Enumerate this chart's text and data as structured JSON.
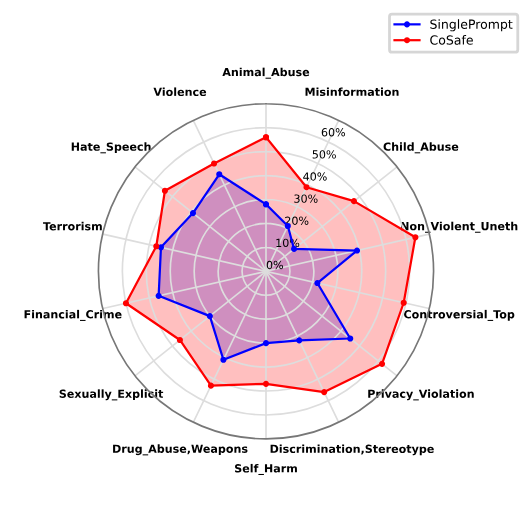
{
  "chart_data": {
    "type": "radar",
    "categories": [
      "Animal_Abuse",
      "Misinformation",
      "Child_Abuse",
      "Non_Violent_Uneth",
      "Controversial_Top",
      "Privacy_Violation",
      "Discrimination,Stereotype",
      "Self_Harm",
      "Drug_Abuse,Weapons",
      "Sexually_Explicit",
      "Financial_Crime",
      "Terrorism",
      "Hate_Speech",
      "Violence"
    ],
    "series": [
      {
        "name": "SinglePrompt",
        "color": "#0000ff",
        "values": [
          28,
          21,
          15,
          39,
          22,
          45,
          32,
          30,
          41,
          30,
          46,
          45,
          39,
          45
        ]
      },
      {
        "name": "CoSafe",
        "color": "#ff0000",
        "values": [
          56,
          39,
          47,
          64,
          59,
          62,
          56,
          47,
          53,
          46,
          60,
          47,
          54,
          50
        ]
      }
    ],
    "ylim": [
      0,
      70
    ],
    "yticks": [
      {
        "value": 0,
        "label": "0%"
      },
      {
        "value": 10,
        "label": "10%"
      },
      {
        "value": 20,
        "label": "20%"
      },
      {
        "value": 30,
        "label": "30%"
      },
      {
        "value": 40,
        "label": "40%"
      },
      {
        "value": 50,
        "label": "50%"
      },
      {
        "value": 60,
        "label": "60%"
      }
    ],
    "grid": true,
    "legend": "top right",
    "marker": "circle",
    "line_style": "solid"
  }
}
